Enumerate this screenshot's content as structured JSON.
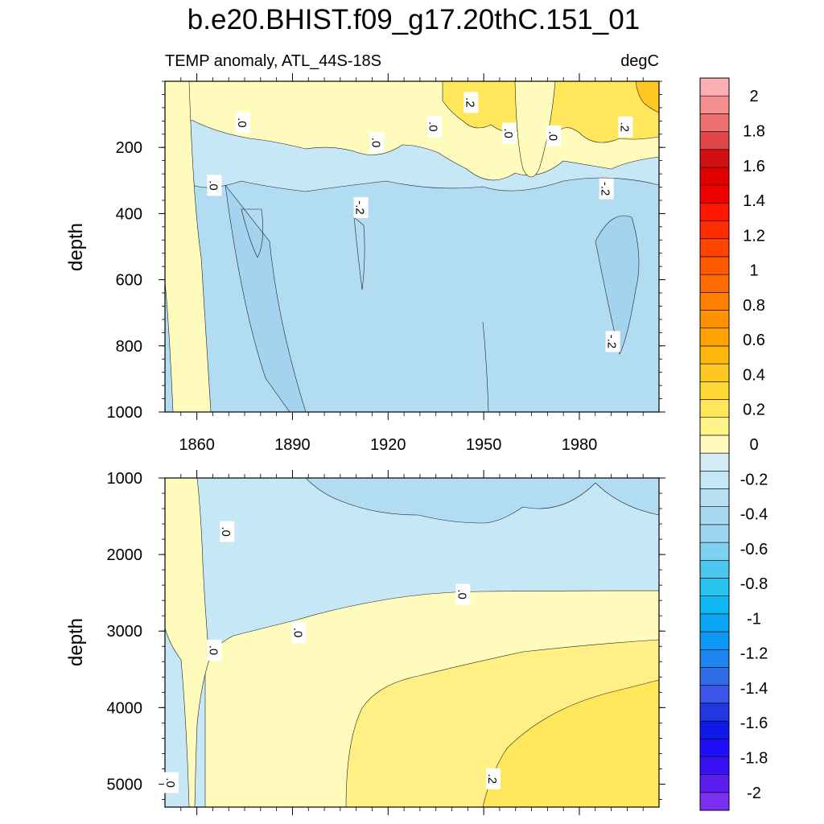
{
  "title": "b.e20.BHIST.f09_g17.20thC.151_01",
  "chart_data": {
    "type": "heatmap",
    "variable_label": "TEMP anomaly, ATL_44S-18S",
    "units_label": "degC",
    "ylabel": "depth",
    "x_ticks": [
      1860,
      1890,
      1920,
      1950,
      1980
    ],
    "xlim": [
      1850,
      2005
    ],
    "top_panel": {
      "ylim": [
        0,
        1000
      ],
      "y_ticks": [
        200,
        400,
        600,
        800,
        1000
      ],
      "contour_labels": [
        {
          "text": ".0",
          "year": 1874.5,
          "depth": 125
        },
        {
          "text": ".0",
          "year": 1916.5,
          "depth": 185
        },
        {
          "text": ".0",
          "year": 1865.5,
          "depth": 315
        },
        {
          "text": ".0",
          "year": 1934.5,
          "depth": 137
        },
        {
          "text": ".2",
          "year": 1946,
          "depth": 64
        },
        {
          "text": ".0",
          "year": 1958,
          "depth": 157
        },
        {
          "text": ".0",
          "year": 1972,
          "depth": 165
        },
        {
          "text": ".2",
          "year": 1994.5,
          "depth": 138
        },
        {
          "text": "-.2",
          "year": 1911.5,
          "depth": 382
        },
        {
          "text": "-.2",
          "year": 1988.5,
          "depth": 325
        },
        {
          "text": "-.2",
          "year": 1990.5,
          "depth": 787
        }
      ]
    },
    "bottom_panel": {
      "ylim": [
        1000,
        5300
      ],
      "y_ticks": [
        1000,
        2000,
        3000,
        4000,
        5000
      ],
      "contour_labels": [
        {
          "text": ".0",
          "year": 1869.5,
          "depth": 1700
        },
        {
          "text": ".0",
          "year": 1865.5,
          "depth": 3250
        },
        {
          "text": ".0",
          "year": 1852,
          "depth": 4980
        },
        {
          "text": ".0",
          "year": 1892,
          "depth": 3020
        },
        {
          "text": ".0",
          "year": 1943.5,
          "depth": 2520
        },
        {
          "text": ".2",
          "year": 1953,
          "depth": 4930
        }
      ]
    },
    "colorbar": {
      "levels": [
        -2,
        -1.9,
        -1.8,
        -1.7,
        -1.6,
        -1.5,
        -1.4,
        -1.3,
        -1.2,
        -1.1,
        -1,
        -0.9,
        -0.8,
        -0.7,
        -0.6,
        -0.5,
        -0.4,
        -0.3,
        -0.2,
        -0.1,
        0,
        0.1,
        0.2,
        0.3,
        0.4,
        0.5,
        0.6,
        0.7,
        0.8,
        0.9,
        1,
        1.1,
        1.2,
        1.3,
        1.4,
        1.5,
        1.6,
        1.7,
        1.8,
        1.9,
        2
      ],
      "tick_labels": [
        "-2",
        "-1.8",
        "-1.6",
        "-1.4",
        "-1.2",
        "-1",
        "-0.8",
        "-0.6",
        "-0.4",
        "-0.2",
        "0",
        "0.2",
        "0.4",
        "0.6",
        "0.8",
        "1",
        "1.2",
        "1.4",
        "1.6",
        "1.8",
        "2"
      ],
      "colors": [
        "#7b2ff0",
        "#5b1cf0",
        "#3a10f5",
        "#1f0ef8",
        "#0f1ae8",
        "#2336e0",
        "#3a55e8",
        "#2f6ee8",
        "#1e84f0",
        "#0e98f5",
        "#0aa6f5",
        "#10b6f2",
        "#29c3f0",
        "#4cc8f0",
        "#7ed1f0",
        "#9dd6f0",
        "#a8d9f0",
        "#b8def2",
        "#c6e7f5",
        "#d2ebf5",
        "#fffbbd",
        "#fff48a",
        "#ffe65a",
        "#ffd838",
        "#ffc821",
        "#ffb60c",
        "#ffa404",
        "#ff9203",
        "#ff7f02",
        "#ff6b01",
        "#ff5a00",
        "#ff4500",
        "#ff2e00",
        "#ff1600",
        "#f20000",
        "#e00000",
        "#d21010",
        "#e04848",
        "#ec7070",
        "#f59090",
        "#fab0b0"
      ]
    }
  }
}
